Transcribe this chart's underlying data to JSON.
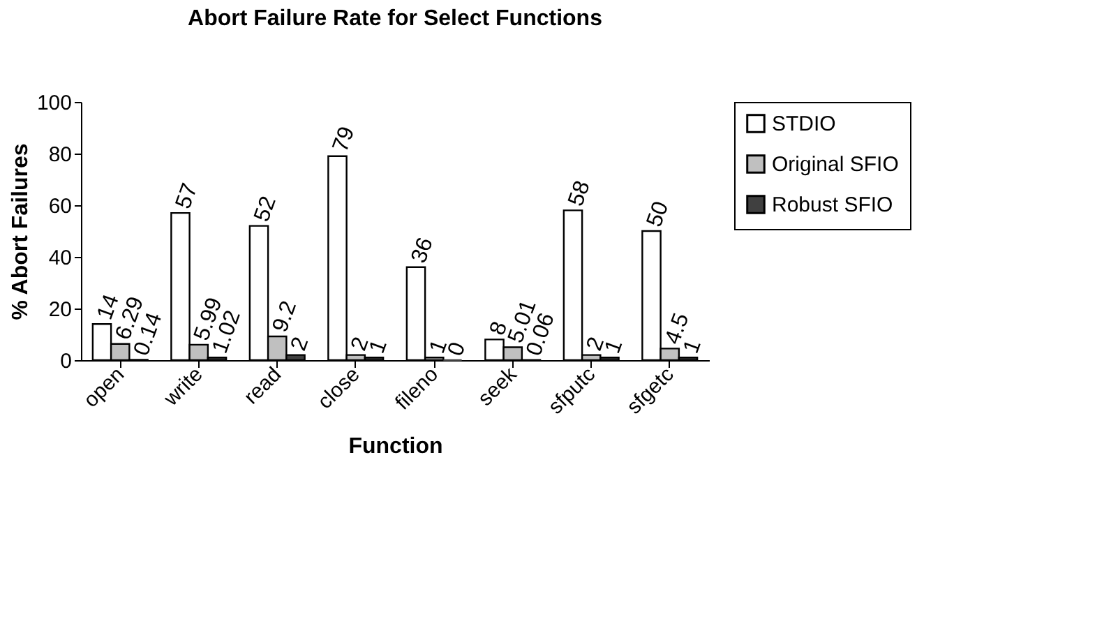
{
  "chart_data": {
    "type": "bar",
    "title": "Abort Failure Rate for Select Functions",
    "xlabel": "Function",
    "ylabel": "% Abort Failures",
    "categories": [
      "open",
      "write",
      "read",
      "close",
      "fileno",
      "seek",
      "sfputc",
      "sfgetc"
    ],
    "series": [
      {
        "name": "STDIO",
        "color": "#ffffff",
        "values": [
          14,
          57,
          52,
          79,
          36,
          8,
          58,
          50
        ]
      },
      {
        "name": "Original SFIO",
        "color": "#c0c0c0",
        "values": [
          6.29,
          5.99,
          9.2,
          2,
          1,
          5.01,
          2,
          4.5
        ]
      },
      {
        "name": "Robust SFIO",
        "color": "#404040",
        "values": [
          0.14,
          1.02,
          2,
          1,
          0,
          0.06,
          1,
          1
        ]
      }
    ],
    "ylim": [
      0,
      100
    ],
    "yticks": [
      0,
      20,
      40,
      60,
      80,
      100
    ],
    "grid": false,
    "legend": "right",
    "data_labels": true
  }
}
